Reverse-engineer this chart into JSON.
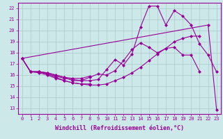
{
  "xlabel": "Windchill (Refroidissement éolien,°C)",
  "bg_color": "#cce8e8",
  "line_color": "#990099",
  "grid_color": "#aacccc",
  "ylim": [
    12.5,
    22.5
  ],
  "xlim": [
    -0.5,
    23.5
  ],
  "yticks": [
    13,
    14,
    15,
    16,
    17,
    18,
    19,
    20,
    21,
    22
  ],
  "xticks": [
    0,
    1,
    2,
    3,
    4,
    5,
    6,
    7,
    8,
    9,
    10,
    11,
    12,
    13,
    14,
    15,
    16,
    17,
    18,
    19,
    20,
    21,
    22,
    23
  ],
  "line1_x": [
    0,
    1,
    2,
    3,
    4,
    5,
    6,
    7,
    8,
    9,
    10,
    11,
    12,
    13,
    14,
    15,
    16,
    17,
    18,
    19,
    20,
    21
  ],
  "line1_y": [
    17.5,
    16.3,
    16.3,
    16.2,
    16.0,
    15.8,
    15.5,
    15.5,
    15.8,
    16.1,
    16.0,
    16.4,
    17.3,
    18.3,
    18.9,
    18.5,
    18.0,
    18.4,
    18.5,
    17.8,
    17.8,
    16.3
  ],
  "line2_x": [
    0,
    1,
    2,
    3,
    4,
    5,
    6,
    7,
    8,
    9,
    10,
    11,
    12,
    13,
    14,
    15,
    16,
    17,
    18,
    19,
    20,
    21
  ],
  "line2_y": [
    17.5,
    16.3,
    16.3,
    16.1,
    15.8,
    15.5,
    15.3,
    15.2,
    15.1,
    15.1,
    15.2,
    15.5,
    15.8,
    16.2,
    16.7,
    17.3,
    17.9,
    18.4,
    19.0,
    19.3,
    19.5,
    19.5
  ],
  "line3_x": [
    0,
    1,
    2,
    3,
    4,
    5,
    6,
    7,
    8
  ],
  "line3_y": [
    17.5,
    16.3,
    16.2,
    16.0,
    15.7,
    15.5,
    15.3,
    15.2,
    15.2
  ],
  "line4_x": [
    0,
    1,
    2,
    3,
    4,
    5,
    6,
    7,
    8
  ],
  "line4_y": [
    17.5,
    16.3,
    16.3,
    16.2,
    16.0,
    15.8,
    15.7,
    15.7,
    15.9
  ],
  "line5_x": [
    2,
    3,
    4,
    5,
    6,
    7,
    8,
    9,
    10,
    11,
    12,
    13,
    14,
    15,
    16,
    17,
    18,
    19,
    20,
    21,
    22,
    23
  ],
  "line5_y": [
    16.3,
    16.1,
    15.9,
    15.7,
    15.6,
    15.5,
    15.5,
    15.6,
    16.5,
    17.4,
    16.9,
    17.9,
    20.3,
    22.2,
    22.2,
    20.5,
    21.8,
    21.3,
    20.5,
    18.8,
    17.8,
    16.3
  ],
  "line6_x": [
    0,
    22,
    23
  ],
  "line6_y": [
    17.5,
    20.5,
    12.9
  ],
  "marker": "D",
  "markersize": 2,
  "linewidth": 0.8,
  "tick_fontsize": 5.0,
  "label_fontsize": 6.0
}
